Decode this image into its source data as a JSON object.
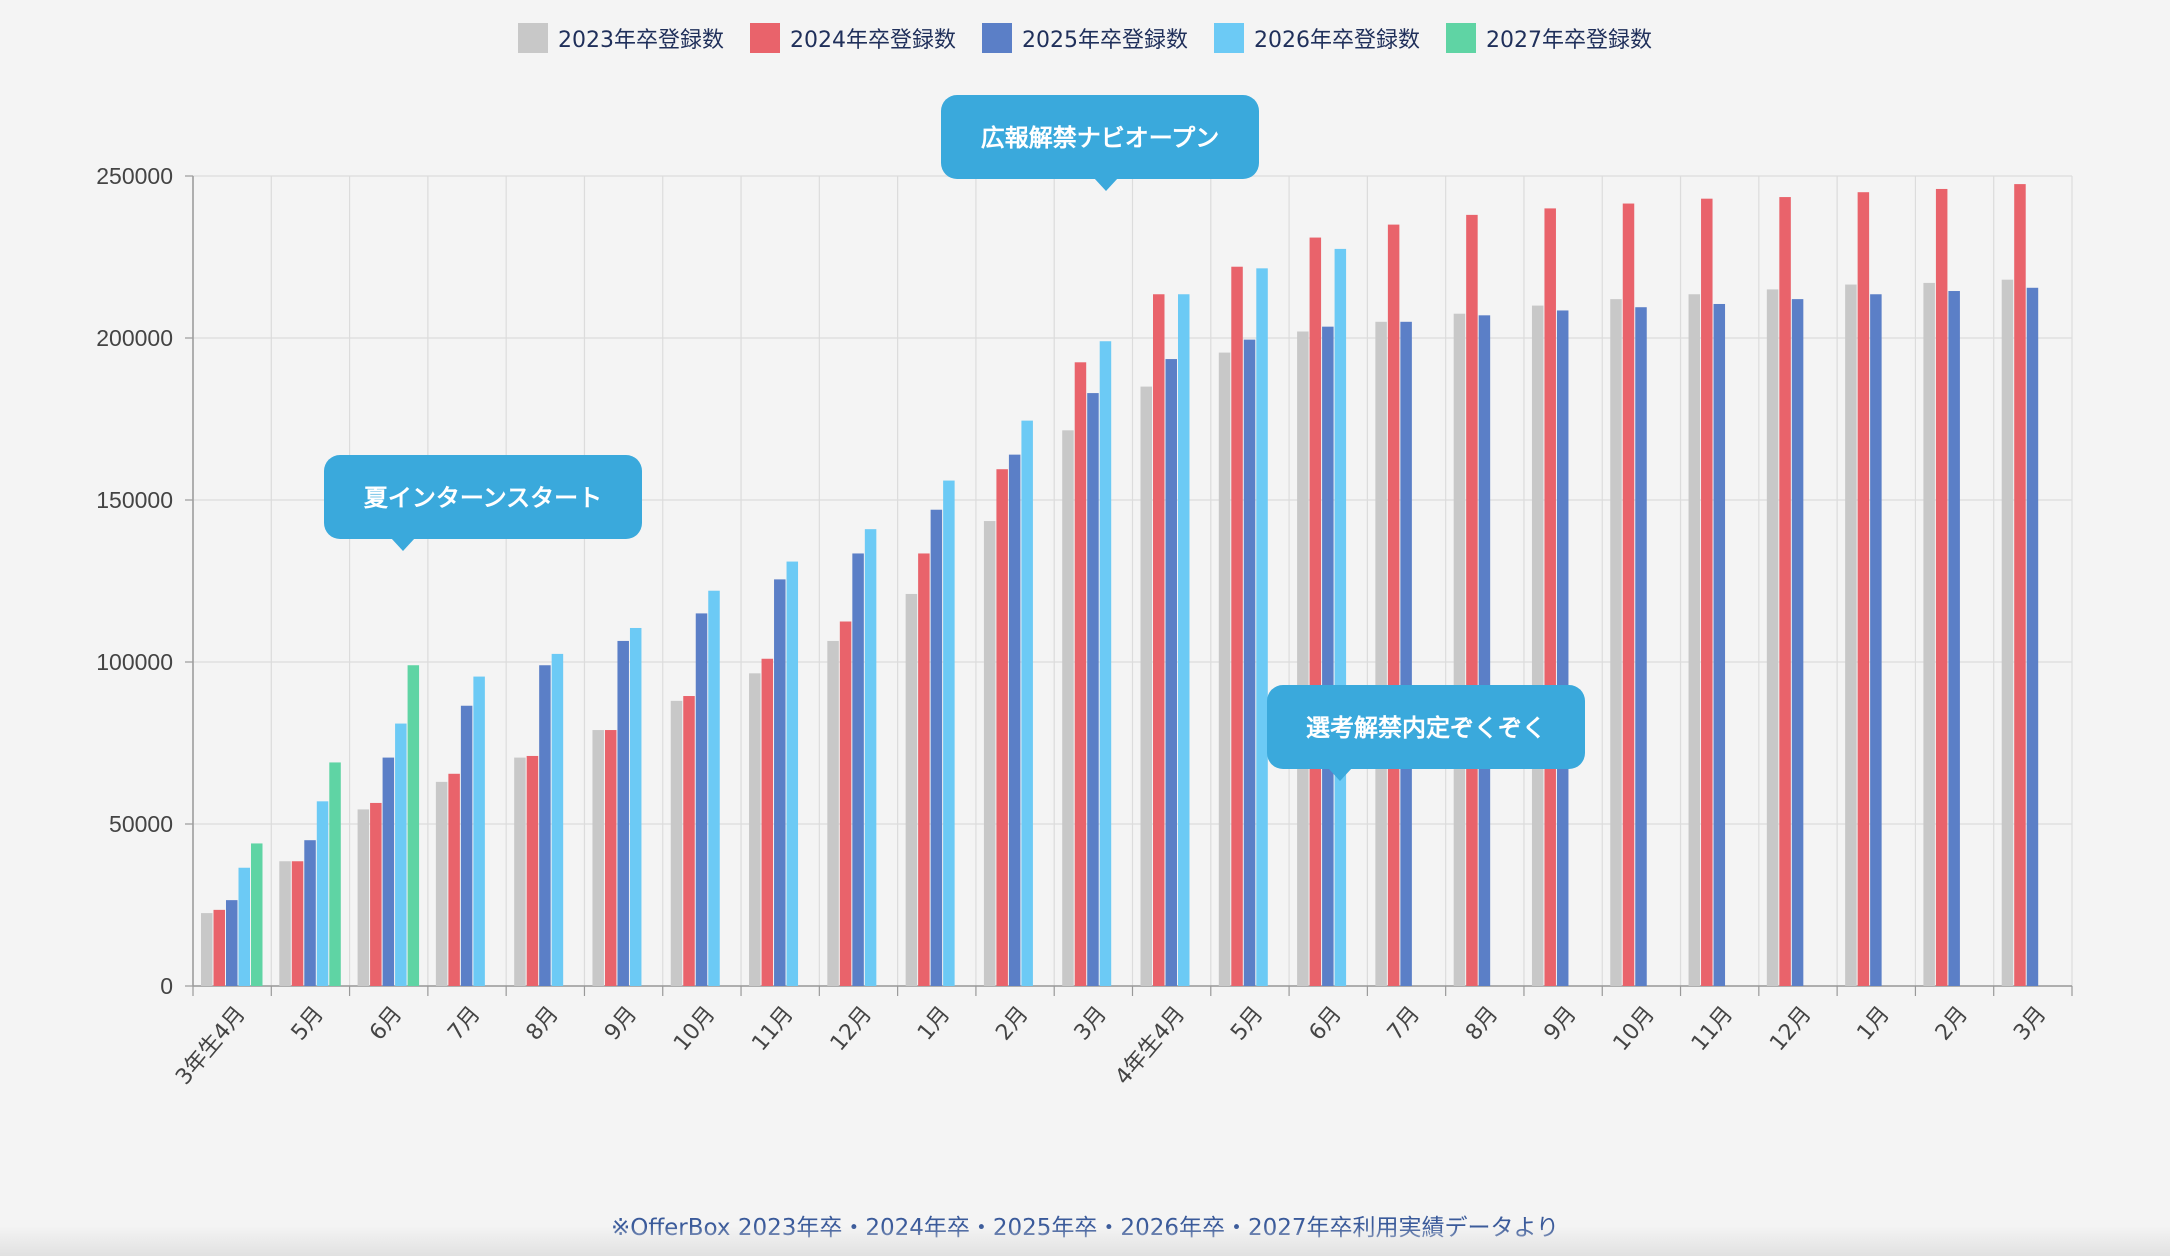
{
  "chart_data": {
    "type": "bar",
    "categories": [
      "3年生4月",
      "5月",
      "6月",
      "7月",
      "8月",
      "9月",
      "10月",
      "11月",
      "12月",
      "1月",
      "2月",
      "3月",
      "4年生4月",
      "5月",
      "6月",
      "7月",
      "8月",
      "9月",
      "10月",
      "11月",
      "12月",
      "1月",
      "2月",
      "3月"
    ],
    "series": [
      {
        "name": "2023年卒登録数",
        "color": "#c8c8c8",
        "values": [
          22500,
          38500,
          54500,
          63000,
          70500,
          79000,
          88000,
          96500,
          106500,
          121000,
          143500,
          171500,
          185000,
          195500,
          202000,
          205000,
          207500,
          210000,
          212000,
          213500,
          215000,
          216500,
          217000,
          218000
        ]
      },
      {
        "name": "2024年卒登録数",
        "color": "#e9636b",
        "values": [
          23500,
          38500,
          56500,
          65500,
          71000,
          79000,
          89500,
          101000,
          112500,
          133500,
          159500,
          192500,
          213500,
          222000,
          231000,
          235000,
          238000,
          240000,
          241500,
          243000,
          243500,
          245000,
          246000,
          247500
        ]
      },
      {
        "name": "2025年卒登録数",
        "color": "#5b7fc7",
        "values": [
          26500,
          45000,
          70500,
          86500,
          99000,
          106500,
          115000,
          125500,
          133500,
          147000,
          164000,
          183000,
          193500,
          199500,
          203500,
          205000,
          207000,
          208500,
          209500,
          210500,
          212000,
          213500,
          214500,
          215500
        ]
      },
      {
        "name": "2026年卒登録数",
        "color": "#6ccaf5",
        "values": [
          36500,
          57000,
          81000,
          95500,
          102500,
          110500,
          122000,
          131000,
          141000,
          156000,
          174500,
          199000,
          213500,
          221500,
          227500,
          null,
          null,
          null,
          null,
          null,
          null,
          null,
          null,
          null
        ]
      },
      {
        "name": "2027年卒登録数",
        "color": "#5fd4a4",
        "values": [
          44000,
          69000,
          99000,
          null,
          null,
          null,
          null,
          null,
          null,
          null,
          null,
          null,
          null,
          null,
          null,
          null,
          null,
          null,
          null,
          null,
          null,
          null,
          null,
          null
        ]
      }
    ],
    "ylim": [
      0,
      250000
    ],
    "yticks": [
      0,
      50000,
      100000,
      150000,
      200000,
      250000
    ],
    "grid": true,
    "legend_position": "top"
  },
  "annotations": [
    {
      "text": "夏インターンスタート"
    },
    {
      "text": "広報解禁ナビオープン"
    },
    {
      "text": "選考解禁内定ぞくぞく"
    }
  ],
  "colors": {
    "callout": "#3aa9dc",
    "grid": "#dcdcdc",
    "axis": "#999999"
  },
  "source_note": "※OfferBox 2023年卒・2024年卒・2025年卒・2026年卒・2027年卒利用実績データより"
}
